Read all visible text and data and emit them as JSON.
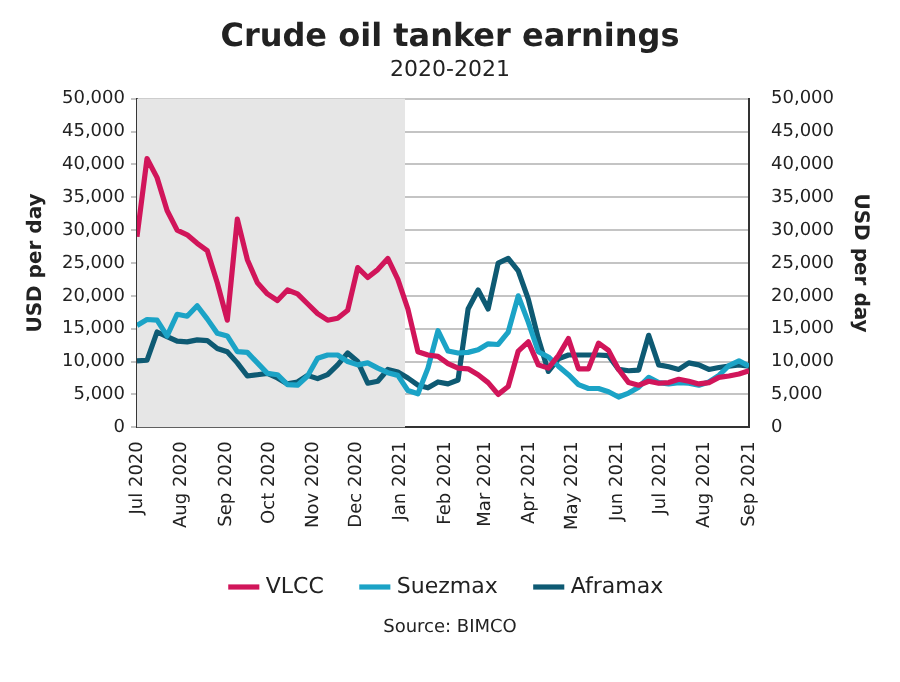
{
  "chart_data": {
    "type": "line",
    "title": "Crude oil tanker earnings",
    "subtitle": "2020-2021",
    "ylabel": "USD per day",
    "y2label": "USD per day",
    "annotations": [
      "Source: BIMCO"
    ],
    "x": [
      "2020-07-01",
      "2020-07-08",
      "2020-07-15",
      "2020-07-22",
      "2020-07-29",
      "2020-08-05",
      "2020-08-12",
      "2020-08-19",
      "2020-08-26",
      "2020-09-02",
      "2020-09-09",
      "2020-09-16",
      "2020-09-23",
      "2020-09-30",
      "2020-10-07",
      "2020-10-14",
      "2020-10-21",
      "2020-10-28",
      "2020-11-04",
      "2020-11-11",
      "2020-11-18",
      "2020-11-25",
      "2020-12-02",
      "2020-12-09",
      "2020-12-16",
      "2020-12-23",
      "2020-12-30",
      "2021-01-06",
      "2021-01-13",
      "2021-01-20",
      "2021-01-27",
      "2021-02-03",
      "2021-02-10",
      "2021-02-17",
      "2021-02-24",
      "2021-03-03",
      "2021-03-10",
      "2021-03-17",
      "2021-03-24",
      "2021-03-31",
      "2021-04-07",
      "2021-04-14",
      "2021-04-21",
      "2021-04-28",
      "2021-05-05",
      "2021-05-12",
      "2021-05-19",
      "2021-05-26",
      "2021-06-02",
      "2021-06-09",
      "2021-06-16",
      "2021-06-23",
      "2021-06-30",
      "2021-07-07",
      "2021-07-14",
      "2021-07-21",
      "2021-07-28",
      "2021-08-04",
      "2021-08-11",
      "2021-08-18",
      "2021-08-25",
      "2021-09-01"
    ],
    "series": [
      {
        "name": "VLCC",
        "color": "#d1155a",
        "values": [
          29000,
          40900,
          38000,
          33000,
          30000,
          29300,
          28000,
          26900,
          22000,
          16300,
          31700,
          25500,
          22000,
          20300,
          19300,
          20900,
          20300,
          18800,
          17300,
          16300,
          16600,
          17800,
          24300,
          22800,
          24000,
          25700,
          22500,
          18000,
          11500,
          11000,
          10800,
          9700,
          9000,
          8900,
          8000,
          6800,
          5000,
          6200,
          11600,
          13000,
          9500,
          9000,
          10900,
          13500,
          8900,
          8900,
          12800,
          11700,
          8800,
          6800,
          6400,
          7000,
          6700,
          6800,
          7300,
          7000,
          6600,
          6800,
          7600,
          7800,
          8100,
          8600
        ]
      },
      {
        "name": "Suezmax",
        "color": "#1ba3c6",
        "values": [
          15500,
          16400,
          16300,
          13900,
          17200,
          16900,
          18500,
          16500,
          14300,
          13900,
          11500,
          11400,
          9800,
          8200,
          8000,
          6500,
          6400,
          7800,
          10500,
          11000,
          11000,
          10000,
          9500,
          9800,
          9000,
          8300,
          7900,
          5600,
          5100,
          9000,
          14700,
          11600,
          11300,
          11400,
          11800,
          12700,
          12600,
          14500,
          20000,
          16000,
          11500,
          10700,
          9300,
          8000,
          6500,
          5900,
          5900,
          5400,
          4600,
          5200,
          6100,
          7600,
          6800,
          6600,
          6800,
          6700,
          6400,
          6900,
          7900,
          9400,
          10100,
          9300
        ]
      },
      {
        "name": "Aframax",
        "color": "#0e5a73",
        "values": [
          10100,
          10200,
          14500,
          13800,
          13100,
          13000,
          13300,
          13200,
          12000,
          11500,
          9800,
          7800,
          8000,
          8200,
          7500,
          6600,
          6900,
          7900,
          7400,
          8000,
          9500,
          11300,
          10000,
          6700,
          7000,
          8800,
          8400,
          7500,
          6400,
          6000,
          6900,
          6600,
          7200,
          18000,
          20900,
          18000,
          25000,
          25700,
          23800,
          19500,
          13500,
          8500,
          10400,
          11000,
          11000,
          11000,
          11000,
          10900,
          8800,
          8600,
          8700,
          14000,
          9500,
          9200,
          8800,
          9800,
          9500,
          8800,
          9100,
          9300,
          9500,
          9300
        ]
      }
    ],
    "xlim": [
      "2020-07-01",
      "2021-09-01"
    ],
    "xticks": [
      {
        "value": "2020-07-01",
        "label": "Jul 2020"
      },
      {
        "value": "2020-08-01",
        "label": "Aug 2020"
      },
      {
        "value": "2020-09-01",
        "label": "Sep 2020"
      },
      {
        "value": "2020-10-01",
        "label": "Oct 2020"
      },
      {
        "value": "2020-11-01",
        "label": "Nov 2020"
      },
      {
        "value": "2020-12-01",
        "label": "Dec 2020"
      },
      {
        "value": "2021-01-01",
        "label": "Jan 2021"
      },
      {
        "value": "2021-02-01",
        "label": "Feb 2021"
      },
      {
        "value": "2021-03-01",
        "label": "Mar 2021"
      },
      {
        "value": "2021-04-01",
        "label": "Apr 2021"
      },
      {
        "value": "2021-05-01",
        "label": "May 2021"
      },
      {
        "value": "2021-06-01",
        "label": "Jun 2021"
      },
      {
        "value": "2021-07-01",
        "label": "Jul 2021"
      },
      {
        "value": "2021-08-01",
        "label": "Aug 2021"
      },
      {
        "value": "2021-09-01",
        "label": "Sep 2021"
      }
    ],
    "ylim": [
      0,
      50000
    ],
    "yticks": [
      0,
      {
        "value": 5000,
        "label": "5,000"
      },
      {
        "value": 10000,
        "label": "10,000"
      },
      {
        "value": 15000,
        "label": "15,000"
      },
      {
        "value": 20000,
        "label": "20,000"
      },
      {
        "value": 25000,
        "label": "25,000"
      },
      {
        "value": 30000,
        "label": "30,000"
      },
      {
        "value": 35000,
        "label": "35,000"
      },
      {
        "value": 40000,
        "label": "40,000"
      },
      {
        "value": 45000,
        "label": "45,000"
      },
      {
        "value": 50000,
        "label": "50,000"
      }
    ],
    "y2lim": [
      0,
      50000
    ],
    "y2ticks": [
      0,
      {
        "value": 5000,
        "label": "5,000"
      },
      {
        "value": 10000,
        "label": "10,000"
      },
      {
        "value": 15000,
        "label": "15,000"
      },
      {
        "value": 20000,
        "label": "20,000"
      },
      {
        "value": 25000,
        "label": "25,000"
      },
      {
        "value": 30000,
        "label": "30,000"
      },
      {
        "value": 35000,
        "label": "35,000"
      },
      {
        "value": 40000,
        "label": "40,000"
      },
      {
        "value": 45000,
        "label": "45,000"
      },
      {
        "value": 50000,
        "label": "50,000"
      }
    ],
    "bands": [
      {
        "axis": "x",
        "from": "2020-07-01",
        "to": "2021-01-04",
        "color": "#e6e6e6"
      }
    ],
    "grid": "y",
    "legend": "bottom",
    "line_style": "solid",
    "marker": "none"
  }
}
